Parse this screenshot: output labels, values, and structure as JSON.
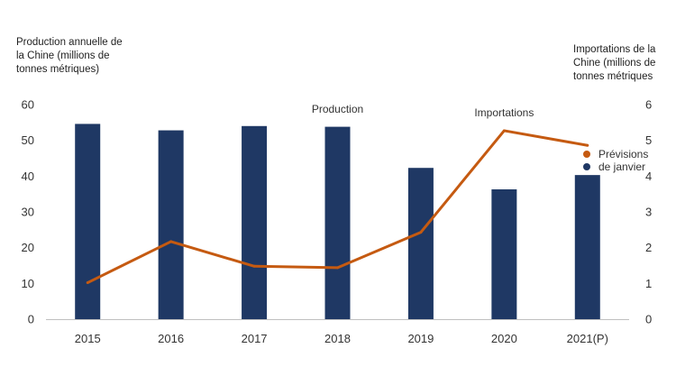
{
  "chart_data": {
    "type": "bar",
    "categories": [
      "2015",
      "2016",
      "2017",
      "2018",
      "2019",
      "2020",
      "2021(P)"
    ],
    "series": [
      {
        "name": "Production",
        "type": "bar",
        "axis": "left",
        "color": "#1f3864",
        "values": [
          54.6,
          52.8,
          54.0,
          53.8,
          42.3,
          36.3,
          40.3
        ]
      },
      {
        "name": "Importations",
        "type": "line",
        "axis": "right",
        "color": "#c55a11",
        "values": [
          1.02,
          2.17,
          1.48,
          1.44,
          2.43,
          5.27,
          4.86
        ]
      }
    ],
    "ylabel_left": "Production annuelle de\nla Chine (millions de\ntonnes métriques)",
    "ylabel_right": "Importations de la\nChine (millions de\ntonnes métriques",
    "ylim_left": [
      0,
      60
    ],
    "ylim_right": [
      0,
      6
    ],
    "yticks_left": [
      "0",
      "10",
      "20",
      "30",
      "40",
      "50",
      "60"
    ],
    "yticks_right": [
      "0",
      "1",
      "2",
      "3",
      "4",
      "5",
      "6"
    ],
    "annotations": {
      "production": "Production",
      "imports": "Importations"
    },
    "legend": {
      "position": "right",
      "entries": [
        {
          "label": "Prévisions",
          "color": "#c55a11"
        },
        {
          "label": "de janvier",
          "color": "#1f3864"
        }
      ]
    },
    "grid": false
  }
}
